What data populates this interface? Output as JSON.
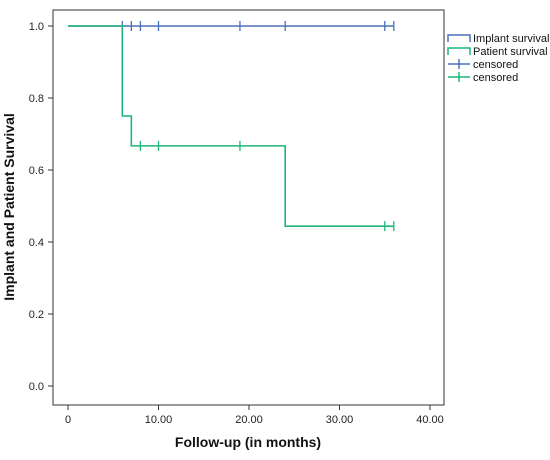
{
  "chart_data": {
    "type": "line",
    "subtype": "kaplan-meier",
    "title": "",
    "xlabel": "Follow-up (in months)",
    "ylabel": "Implant and Patient Survival",
    "xlim": [
      0,
      40
    ],
    "ylim": [
      0,
      1.0
    ],
    "x_ticks": [
      0,
      10,
      20,
      30,
      40
    ],
    "x_tick_labels": [
      "0",
      "10.00",
      "20.00",
      "30.00",
      "40.00"
    ],
    "y_ticks": [
      0,
      0.2,
      0.4,
      0.6,
      0.8,
      1.0
    ],
    "y_tick_labels": [
      "0.0",
      "0.2",
      "0.4",
      "0.6",
      "0.8",
      "1.0"
    ],
    "grid": false,
    "legend_position": "top-right, outside plot",
    "series": [
      {
        "name": "Implant survival",
        "color": "#4a72b8",
        "step_points": [
          [
            0,
            1.0
          ],
          [
            36,
            1.0
          ]
        ],
        "censored": [
          [
            6,
            1.0
          ],
          [
            7,
            1.0
          ],
          [
            8,
            1.0
          ],
          [
            10,
            1.0
          ],
          [
            19,
            1.0
          ],
          [
            24,
            1.0
          ],
          [
            35,
            1.0
          ],
          [
            36,
            1.0
          ]
        ]
      },
      {
        "name": "Patient survival",
        "color": "#1db67a",
        "step_points": [
          [
            0,
            1.0
          ],
          [
            6,
            0.75
          ],
          [
            7,
            0.667
          ],
          [
            24,
            0.444
          ],
          [
            36,
            0.444
          ]
        ],
        "censored": [
          [
            8,
            0.667
          ],
          [
            10,
            0.667
          ],
          [
            19,
            0.667
          ],
          [
            35,
            0.444
          ],
          [
            36,
            0.444
          ]
        ]
      }
    ],
    "legend": [
      {
        "label": "Implant survival",
        "symbol": "step",
        "color": "#4a72b8"
      },
      {
        "label": "Patient survival",
        "symbol": "step",
        "color": "#1db67a"
      },
      {
        "label": "censored",
        "symbol": "cross",
        "color": "#4a72b8"
      },
      {
        "label": "censored",
        "symbol": "cross",
        "color": "#1db67a"
      }
    ]
  }
}
